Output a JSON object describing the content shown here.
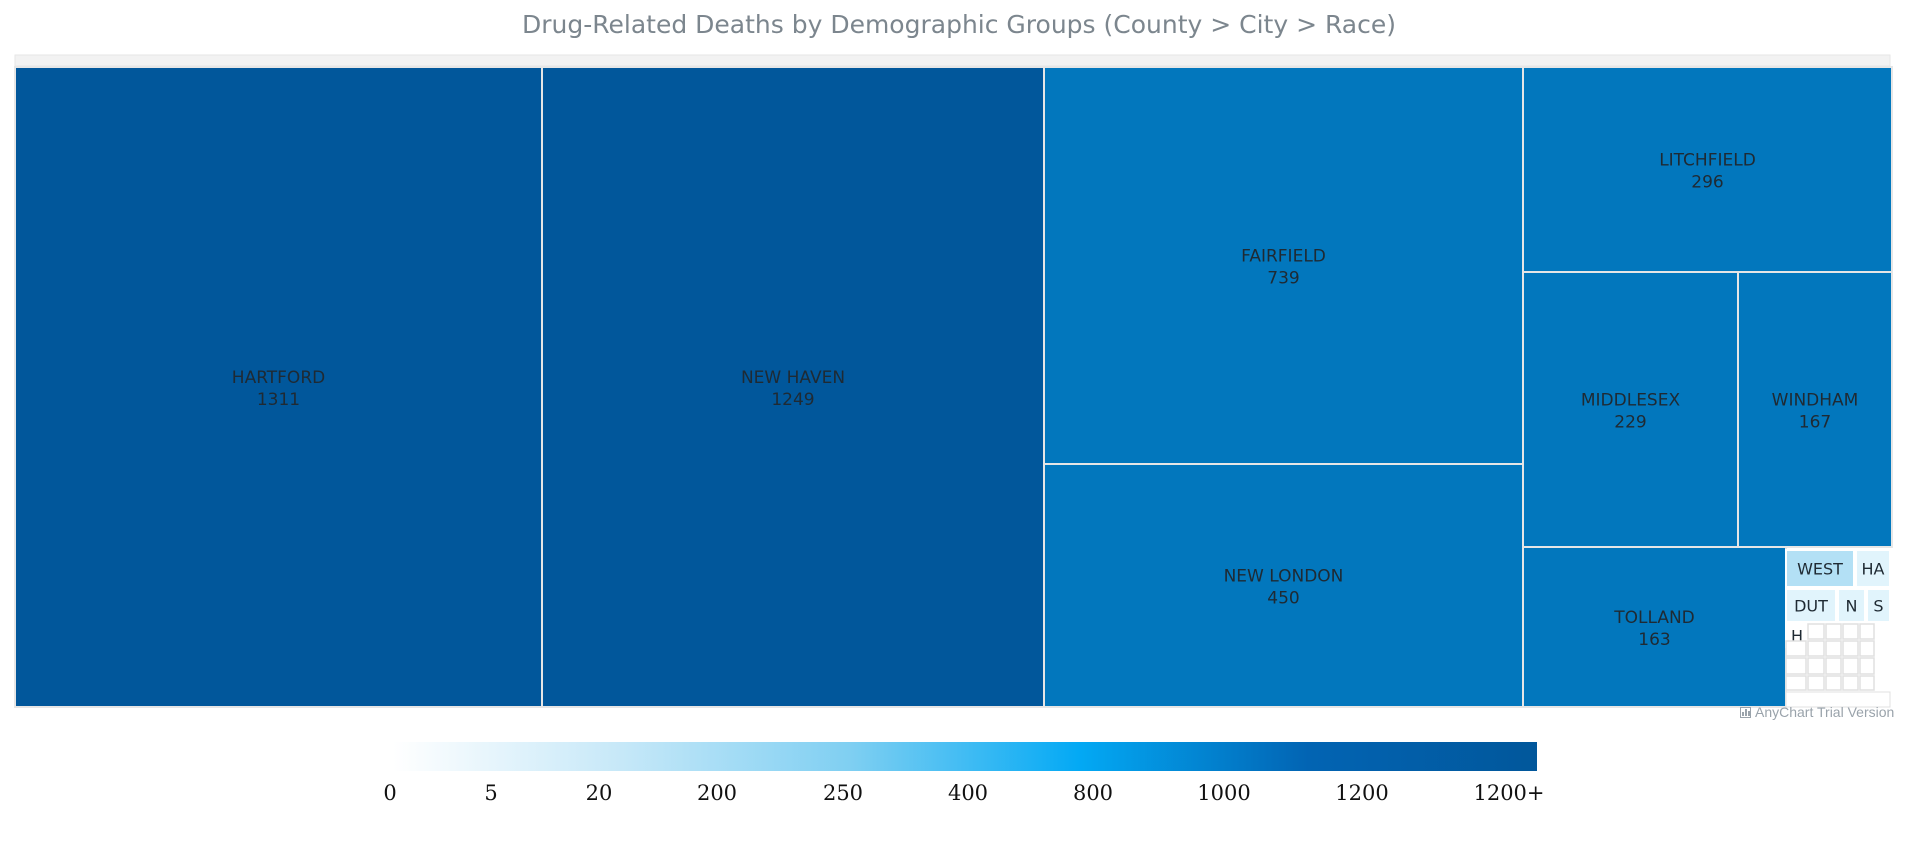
{
  "chart_data": {
    "type": "treemap",
    "title": "Drug-Related Deaths by Demographic Groups (County > City > Race)",
    "root_header": "",
    "items": [
      {
        "name": "HARTFORD",
        "value": 1311
      },
      {
        "name": "NEW HAVEN",
        "value": 1249
      },
      {
        "name": "FAIRFIELD",
        "value": 739
      },
      {
        "name": "NEW LONDON",
        "value": 450
      },
      {
        "name": "LITCHFIELD",
        "value": 296
      },
      {
        "name": "MIDDLESEX",
        "value": 229
      },
      {
        "name": "WINDHAM",
        "value": 167
      },
      {
        "name": "TOLLAND",
        "value": 163
      },
      {
        "name": "WEST",
        "value": null
      },
      {
        "name": "HA",
        "value": null
      },
      {
        "name": "DUT",
        "value": null
      },
      {
        "name": "N",
        "value": null
      },
      {
        "name": "S",
        "value": null
      },
      {
        "name": "H",
        "value": null
      }
    ],
    "color_range": {
      "ticks": [
        "0",
        "5",
        "20",
        "200",
        "250",
        "400",
        "800",
        "1000",
        "1200",
        "1200+"
      ],
      "colors": [
        "#ffffff",
        "#c6e8f8",
        "#7fcff2",
        "#03a9f4",
        "#0264b3",
        "#01579b"
      ]
    },
    "colors": {
      "dark": "#01579b",
      "medium": "#0277bd",
      "light": "#b3e0f5",
      "lighter": "#e1f4fc",
      "border": "#e6e6e6"
    }
  },
  "watermark": "AnyChart Trial Version"
}
